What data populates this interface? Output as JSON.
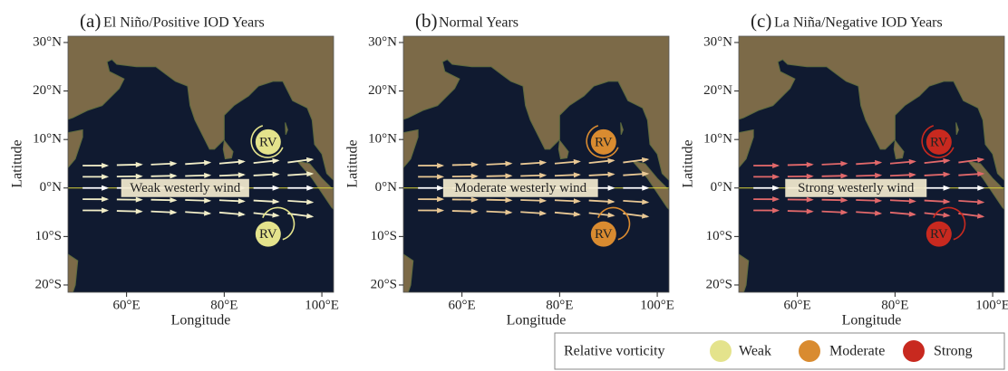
{
  "chart_data": [
    {
      "type": "map",
      "panel_label": "(a)",
      "title": "El Niño/Positive IOD Years",
      "xlabel": "Longitude",
      "ylabel": "Latitude",
      "xlim": [
        48,
        102.4
      ],
      "ylim": [
        -21.5,
        31.3
      ],
      "xticks": [
        {
          "value": 60,
          "label": "60°E"
        },
        {
          "value": 80,
          "label": "80°E"
        },
        {
          "value": 100,
          "label": "100°E"
        }
      ],
      "yticks": [
        {
          "value": 30,
          "label": "30°N"
        },
        {
          "value": 20,
          "label": "20°N"
        },
        {
          "value": 10,
          "label": "10°N"
        },
        {
          "value": 0,
          "label": "0°N"
        },
        {
          "value": -10,
          "label": "10°S"
        },
        {
          "value": -20,
          "label": "20°S"
        }
      ],
      "wind_label": "Weak westerly wind",
      "rv_labels": [
        "RV",
        "RV"
      ],
      "color": "#e4e38c",
      "arrow_color": "#f2eec8"
    },
    {
      "type": "map",
      "panel_label": "(b)",
      "title": "Normal Years",
      "xlabel": "Longitude",
      "ylabel": "Latitude",
      "xlim": [
        48,
        102.4
      ],
      "ylim": [
        -21.5,
        31.3
      ],
      "xticks": [
        {
          "value": 60,
          "label": "60°E"
        },
        {
          "value": 80,
          "label": "80°E"
        },
        {
          "value": 100,
          "label": "100°E"
        }
      ],
      "yticks": [
        {
          "value": 30,
          "label": "30°N"
        },
        {
          "value": 20,
          "label": "20°N"
        },
        {
          "value": 10,
          "label": "10°N"
        },
        {
          "value": 0,
          "label": "0°N"
        },
        {
          "value": -10,
          "label": "10°S"
        },
        {
          "value": -20,
          "label": "20°S"
        }
      ],
      "wind_label": "Moderate westerly wind",
      "rv_labels": [
        "RV",
        "RV"
      ],
      "color": "#d98b30",
      "arrow_color": "#e9c894"
    },
    {
      "type": "map",
      "panel_label": "(c)",
      "title": "La Niña/Negative IOD Years",
      "xlabel": "Longitude",
      "ylabel": "Latitude",
      "xlim": [
        48,
        102.4
      ],
      "ylim": [
        -21.5,
        31.3
      ],
      "xticks": [
        {
          "value": 60,
          "label": "60°E"
        },
        {
          "value": 80,
          "label": "80°E"
        },
        {
          "value": 100,
          "label": "100°E"
        }
      ],
      "yticks": [
        {
          "value": 30,
          "label": "30°N"
        },
        {
          "value": 20,
          "label": "20°N"
        },
        {
          "value": 10,
          "label": "10°N"
        },
        {
          "value": 0,
          "label": "0°N"
        },
        {
          "value": -10,
          "label": "10°S"
        },
        {
          "value": -20,
          "label": "20°S"
        }
      ],
      "wind_label": "Strong westerly wind",
      "rv_labels": [
        "RV",
        "RV"
      ],
      "color": "#c8291f",
      "arrow_color": "#e2686a"
    }
  ],
  "legend": {
    "title": "Relative vorticity",
    "items": [
      {
        "label": "Weak",
        "color": "#e4e38c"
      },
      {
        "label": "Moderate",
        "color": "#d98b30"
      },
      {
        "label": "Strong",
        "color": "#c8291f"
      }
    ]
  }
}
